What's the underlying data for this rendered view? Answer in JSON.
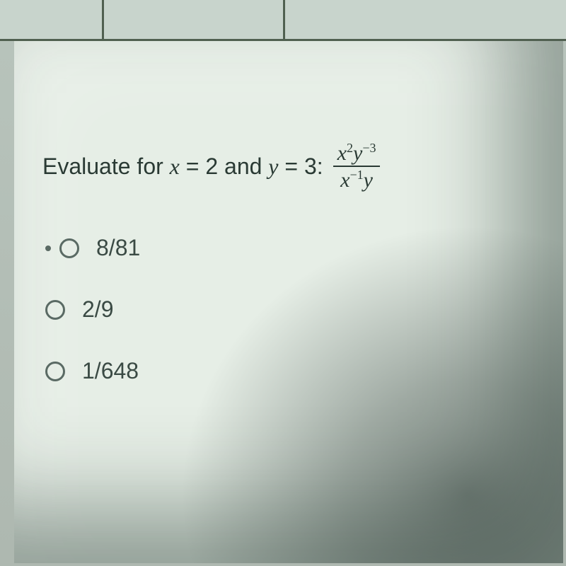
{
  "question": {
    "prompt_prefix": "Evaluate for ",
    "var1_name": "x",
    "eq1": "= 2 and ",
    "var2_name": "y",
    "eq2": "= 3: ",
    "fraction": {
      "numerator_html": "x<sup>2</sup>y<sup>−3</sup>",
      "denominator_html": "x<sup>−1</sup>y"
    }
  },
  "options": [
    {
      "label": "8/81",
      "has_lead_dot": true
    },
    {
      "label": "2/9",
      "has_lead_dot": false
    },
    {
      "label": "1/648",
      "has_lead_dot": false
    }
  ],
  "colors": {
    "paper_bg": "#e6eee6",
    "text": "#2a3a34",
    "radio_border": "#5a6a64"
  }
}
